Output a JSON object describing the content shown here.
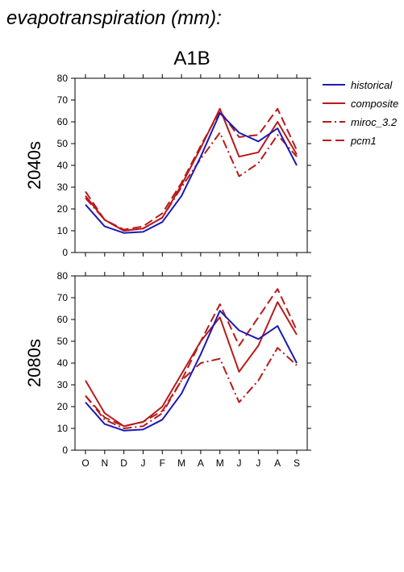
{
  "page_title": "evapotranspiration (mm):",
  "scenario": "A1B",
  "colors": {
    "historical": "#1a1ab8",
    "model": "#b81a1a",
    "axis": "#000000"
  },
  "legend": [
    {
      "label": "historical",
      "style": "solid",
      "color": "#1a1ab8"
    },
    {
      "label": "composite",
      "style": "solid",
      "color": "#b81a1a"
    },
    {
      "label": "miroc_3.2",
      "style": "dashdot",
      "color": "#b81a1a"
    },
    {
      "label": "pcm1",
      "style": "dashed",
      "color": "#b81a1a"
    }
  ],
  "chart_data": [
    {
      "type": "line",
      "panel_label": "2040s",
      "categories": [
        "O",
        "N",
        "D",
        "J",
        "F",
        "M",
        "A",
        "M",
        "J",
        "J",
        "A",
        "S"
      ],
      "ylim": [
        0,
        80
      ],
      "yticks": [
        0,
        10,
        20,
        30,
        40,
        50,
        60,
        70,
        80
      ],
      "grid": false,
      "legend_position": "right",
      "series": [
        {
          "name": "historical",
          "style": "solid",
          "values": [
            22,
            12,
            9,
            9.5,
            14,
            26,
            44,
            64,
            55,
            51,
            57,
            40
          ]
        },
        {
          "name": "composite",
          "style": "solid",
          "values": [
            26,
            15,
            10,
            11,
            16,
            31,
            48,
            66,
            44,
            46,
            60,
            45
          ]
        },
        {
          "name": "miroc_3.2",
          "style": "dashdot",
          "values": [
            25,
            15,
            10,
            11,
            16,
            30,
            43,
            55,
            35,
            41,
            54,
            44
          ]
        },
        {
          "name": "pcm1",
          "style": "dashed",
          "values": [
            28,
            15,
            10.5,
            12,
            18,
            32,
            49,
            65,
            53,
            54,
            66,
            47
          ]
        }
      ]
    },
    {
      "type": "line",
      "panel_label": "2080s",
      "categories": [
        "O",
        "N",
        "D",
        "J",
        "F",
        "M",
        "A",
        "M",
        "J",
        "J",
        "A",
        "S"
      ],
      "ylim": [
        0,
        80
      ],
      "yticks": [
        0,
        10,
        20,
        30,
        40,
        50,
        60,
        70,
        80
      ],
      "grid": false,
      "legend_position": "none",
      "series": [
        {
          "name": "historical",
          "style": "solid",
          "values": [
            22,
            12,
            9,
            9.5,
            14,
            26,
            44,
            64,
            55,
            51,
            57,
            40
          ]
        },
        {
          "name": "composite",
          "style": "solid",
          "values": [
            32,
            17,
            11,
            13,
            20,
            35,
            50,
            61,
            36,
            48,
            68,
            53
          ]
        },
        {
          "name": "miroc_3.2",
          "style": "dashdot",
          "values": [
            25,
            14,
            10,
            11,
            17,
            32,
            40,
            42,
            22,
            32,
            47,
            39
          ]
        },
        {
          "name": "pcm1",
          "style": "dashed",
          "values": [
            25,
            15,
            11,
            13,
            18,
            32,
            50,
            67,
            48,
            61,
            74,
            55
          ]
        }
      ]
    }
  ]
}
